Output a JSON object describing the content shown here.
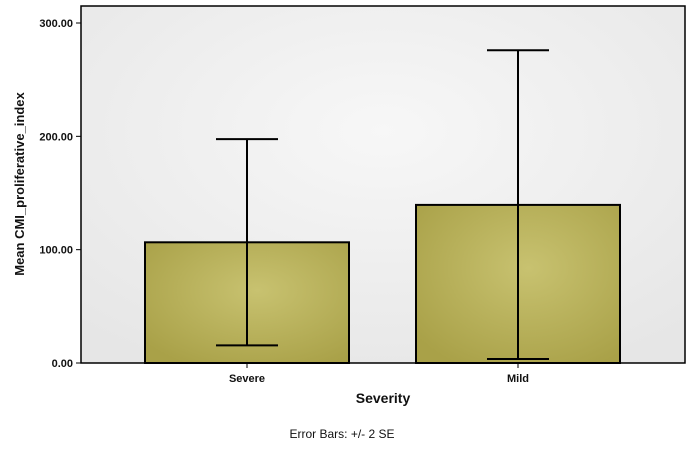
{
  "chart_data": {
    "type": "bar",
    "categories": [
      "Severe",
      "Mild"
    ],
    "values": [
      106.5,
      139.5
    ],
    "error_bars": {
      "lower": [
        15.5,
        3.5
      ],
      "upper": [
        197.5,
        276.0
      ]
    },
    "title": "",
    "xlabel": "Severity",
    "ylabel": "Mean CMI_proliferative_index",
    "ylim": [
      0,
      300
    ],
    "yticks": [
      0,
      100,
      200,
      300
    ],
    "ytick_labels": [
      "0.00",
      "100.00",
      "200.00",
      "300.00"
    ],
    "grid": false,
    "legend": "none",
    "footnote": "Error Bars: +/- 2 SE",
    "colors": {
      "bar_fill": "#bdb55e",
      "bar_stroke": "#000000",
      "plot_bg": "#f0f0f0",
      "error_bar": "#000000"
    }
  }
}
